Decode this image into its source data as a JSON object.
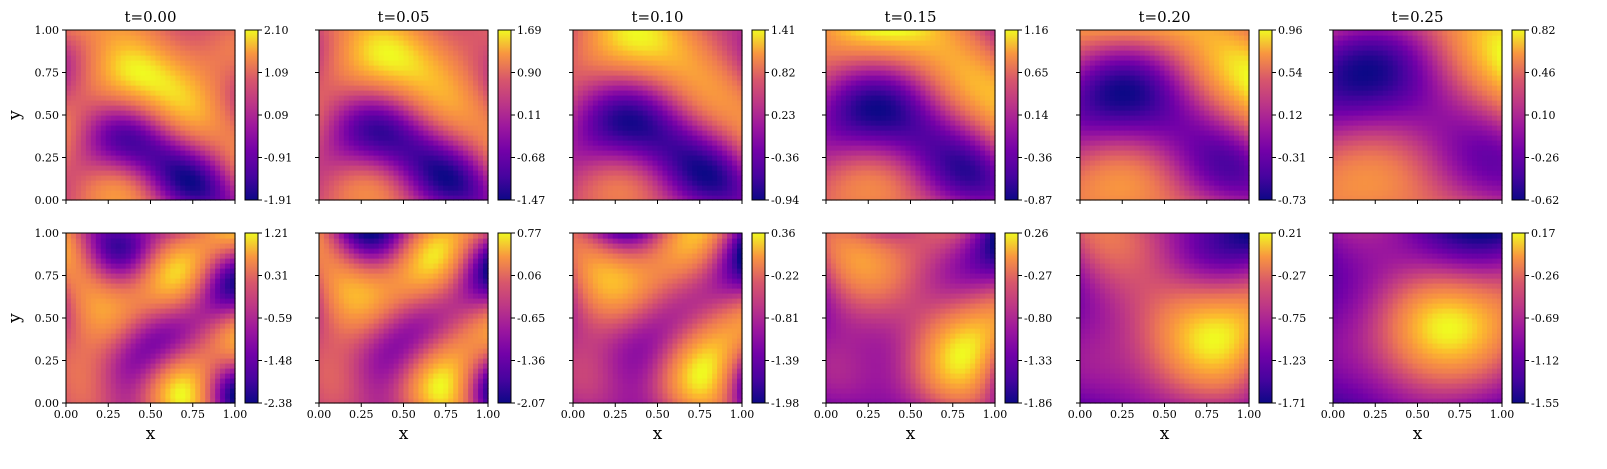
{
  "chart_data": {
    "type": "heatmap",
    "figure": "2x6 grid of 2D field snapshots over time (plasma colormap)",
    "colormap": "plasma",
    "times": [
      "t=0.00",
      "t=0.05",
      "t=0.10",
      "t=0.15",
      "t=0.20",
      "t=0.25"
    ],
    "x_axis": {
      "label": "x",
      "ticks": [
        "0.00",
        "0.25",
        "0.50",
        "0.75",
        "1.00"
      ],
      "range": [
        0,
        1
      ]
    },
    "y_axis": {
      "label": "y",
      "ticks": [
        "0.00",
        "0.25",
        "0.50",
        "0.75",
        "1.00"
      ],
      "range": [
        0,
        1
      ]
    },
    "rows": [
      {
        "panels": [
          {
            "colorbar_ticks": [
              "2.10",
              "1.09",
              "0.09",
              "-0.91",
              "-1.91"
            ],
            "vmin": -1.91,
            "vmax": 2.1
          },
          {
            "colorbar_ticks": [
              "1.69",
              "0.90",
              "0.11",
              "-0.68",
              "-1.47"
            ],
            "vmin": -1.47,
            "vmax": 1.69
          },
          {
            "colorbar_ticks": [
              "1.41",
              "0.82",
              "0.23",
              "-0.36",
              "-0.94"
            ],
            "vmin": -0.94,
            "vmax": 1.41
          },
          {
            "colorbar_ticks": [
              "1.16",
              "0.65",
              "0.14",
              "-0.36",
              "-0.87"
            ],
            "vmin": -0.87,
            "vmax": 1.16
          },
          {
            "colorbar_ticks": [
              "0.96",
              "0.54",
              "0.12",
              "-0.31",
              "-0.73"
            ],
            "vmin": -0.73,
            "vmax": 0.96
          },
          {
            "colorbar_ticks": [
              "0.82",
              "0.46",
              "0.10",
              "-0.26",
              "-0.62"
            ],
            "vmin": -0.62,
            "vmax": 0.82
          }
        ]
      },
      {
        "panels": [
          {
            "colorbar_ticks": [
              "1.21",
              "0.31",
              "-0.59",
              "-1.48",
              "-2.38"
            ],
            "vmin": -2.38,
            "vmax": 1.21
          },
          {
            "colorbar_ticks": [
              "0.77",
              "0.06",
              "-0.65",
              "-1.36",
              "-2.07"
            ],
            "vmin": -2.07,
            "vmax": 0.77
          },
          {
            "colorbar_ticks": [
              "0.36",
              "-0.22",
              "-0.81",
              "-1.39",
              "-1.98"
            ],
            "vmin": -1.98,
            "vmax": 0.36
          },
          {
            "colorbar_ticks": [
              "0.26",
              "-0.27",
              "-0.80",
              "-1.33",
              "-1.86"
            ],
            "vmin": -1.86,
            "vmax": 0.26
          },
          {
            "colorbar_ticks": [
              "0.21",
              "-0.27",
              "-0.75",
              "-1.23",
              "-1.71"
            ],
            "vmin": -1.71,
            "vmax": 0.21
          },
          {
            "colorbar_ticks": [
              "0.17",
              "-0.26",
              "-0.69",
              "-1.12",
              "-1.55"
            ],
            "vmin": -1.55,
            "vmax": 0.17
          }
        ]
      }
    ]
  }
}
